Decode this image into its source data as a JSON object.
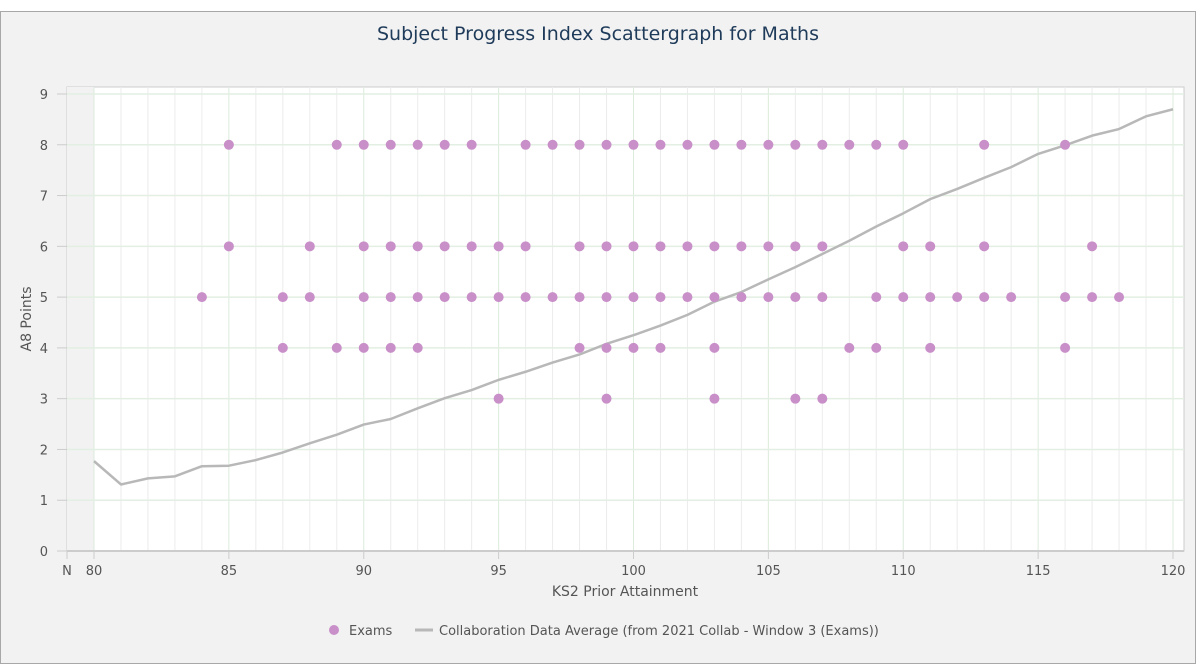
{
  "chart_data": {
    "type": "scatter",
    "title": "Subject Progress Index Scattergraph for Maths",
    "xlabel": "KS2 Prior Attainment",
    "ylabel": "A8 Points",
    "xlim": [
      80,
      120
    ],
    "ylim": [
      0,
      9
    ],
    "x_ticks": [
      "N",
      "80",
      "85",
      "90",
      "95",
      "100",
      "105",
      "110",
      "115",
      "120"
    ],
    "y_ticks": [
      "0",
      "1",
      "2",
      "3",
      "4",
      "5",
      "6",
      "7",
      "8",
      "9"
    ],
    "grid": true,
    "legend_position": "bottom",
    "colors": {
      "scatter": "#c88fc8",
      "line": "#b8b8b8",
      "title": "#1f3b5a"
    },
    "series": [
      {
        "name": "Exams",
        "type": "scatter",
        "points": [
          [
            85,
            8
          ],
          [
            89,
            8
          ],
          [
            90,
            8
          ],
          [
            91,
            8
          ],
          [
            92,
            8
          ],
          [
            93,
            8
          ],
          [
            94,
            8
          ],
          [
            96,
            8
          ],
          [
            97,
            8
          ],
          [
            98,
            8
          ],
          [
            99,
            8
          ],
          [
            100,
            8
          ],
          [
            101,
            8
          ],
          [
            102,
            8
          ],
          [
            103,
            8
          ],
          [
            104,
            8
          ],
          [
            105,
            8
          ],
          [
            106,
            8
          ],
          [
            107,
            8
          ],
          [
            108,
            8
          ],
          [
            109,
            8
          ],
          [
            110,
            8
          ],
          [
            113,
            8
          ],
          [
            116,
            8
          ],
          [
            85,
            6
          ],
          [
            88,
            6
          ],
          [
            90,
            6
          ],
          [
            91,
            6
          ],
          [
            92,
            6
          ],
          [
            93,
            6
          ],
          [
            94,
            6
          ],
          [
            95,
            6
          ],
          [
            96,
            6
          ],
          [
            98,
            6
          ],
          [
            99,
            6
          ],
          [
            100,
            6
          ],
          [
            101,
            6
          ],
          [
            102,
            6
          ],
          [
            103,
            6
          ],
          [
            104,
            6
          ],
          [
            105,
            6
          ],
          [
            106,
            6
          ],
          [
            107,
            6
          ],
          [
            110,
            6
          ],
          [
            111,
            6
          ],
          [
            113,
            6
          ],
          [
            117,
            6
          ],
          [
            84,
            5
          ],
          [
            87,
            5
          ],
          [
            88,
            5
          ],
          [
            90,
            5
          ],
          [
            91,
            5
          ],
          [
            92,
            5
          ],
          [
            93,
            5
          ],
          [
            94,
            5
          ],
          [
            95,
            5
          ],
          [
            96,
            5
          ],
          [
            97,
            5
          ],
          [
            98,
            5
          ],
          [
            99,
            5
          ],
          [
            100,
            5
          ],
          [
            101,
            5
          ],
          [
            102,
            5
          ],
          [
            103,
            5
          ],
          [
            104,
            5
          ],
          [
            105,
            5
          ],
          [
            106,
            5
          ],
          [
            107,
            5
          ],
          [
            109,
            5
          ],
          [
            110,
            5
          ],
          [
            111,
            5
          ],
          [
            112,
            5
          ],
          [
            113,
            5
          ],
          [
            114,
            5
          ],
          [
            116,
            5
          ],
          [
            117,
            5
          ],
          [
            118,
            5
          ],
          [
            87,
            4
          ],
          [
            89,
            4
          ],
          [
            90,
            4
          ],
          [
            91,
            4
          ],
          [
            92,
            4
          ],
          [
            98,
            4
          ],
          [
            99,
            4
          ],
          [
            100,
            4
          ],
          [
            101,
            4
          ],
          [
            103,
            4
          ],
          [
            108,
            4
          ],
          [
            109,
            4
          ],
          [
            111,
            4
          ],
          [
            116,
            4
          ],
          [
            95,
            3
          ],
          [
            99,
            3
          ],
          [
            103,
            3
          ],
          [
            106,
            3
          ],
          [
            107,
            3
          ]
        ]
      },
      {
        "name": "Collaboration Data Average (from 2021 Collab - Window 3 (Exams))",
        "type": "line",
        "points": [
          [
            80,
            1.77
          ],
          [
            81,
            1.31
          ],
          [
            82,
            1.43
          ],
          [
            83,
            1.47
          ],
          [
            84,
            1.67
          ],
          [
            85,
            1.68
          ],
          [
            86,
            1.79
          ],
          [
            87,
            1.94
          ],
          [
            88,
            2.12
          ],
          [
            89,
            2.29
          ],
          [
            90,
            2.49
          ],
          [
            91,
            2.6
          ],
          [
            92,
            2.81
          ],
          [
            93,
            3.01
          ],
          [
            94,
            3.17
          ],
          [
            95,
            3.37
          ],
          [
            96,
            3.53
          ],
          [
            97,
            3.71
          ],
          [
            98,
            3.87
          ],
          [
            99,
            4.08
          ],
          [
            100,
            4.25
          ],
          [
            101,
            4.44
          ],
          [
            102,
            4.65
          ],
          [
            103,
            4.91
          ],
          [
            104,
            5.1
          ],
          [
            105,
            5.35
          ],
          [
            106,
            5.59
          ],
          [
            107,
            5.85
          ],
          [
            108,
            6.11
          ],
          [
            109,
            6.39
          ],
          [
            110,
            6.65
          ],
          [
            111,
            6.93
          ],
          [
            112,
            7.13
          ],
          [
            113,
            7.35
          ],
          [
            114,
            7.56
          ],
          [
            115,
            7.82
          ],
          [
            116,
            7.99
          ],
          [
            117,
            8.18
          ],
          [
            118,
            8.31
          ],
          [
            119,
            8.56
          ],
          [
            120,
            8.7
          ]
        ]
      }
    ]
  },
  "legend": {
    "items": [
      {
        "label": "Exams"
      },
      {
        "label": "Collaboration Data Average (from 2021 Collab - Window 3 (Exams))"
      }
    ]
  }
}
